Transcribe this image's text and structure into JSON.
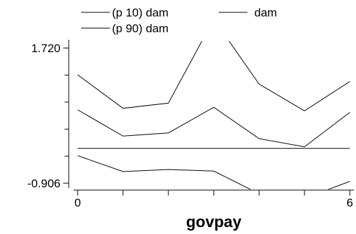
{
  "chart_data": {
    "type": "line",
    "xlabel": "govpay",
    "x": [
      0,
      1,
      2,
      3,
      4,
      5,
      6
    ],
    "xlim": [
      0,
      6
    ],
    "x_tick_labels": [
      {
        "value": 0,
        "label": "0"
      },
      {
        "value": 6,
        "label": "6"
      }
    ],
    "ylim": [
      -0.906,
      1.72
    ],
    "y_tick_labels": [
      {
        "value": 1.72,
        "label": "1.720"
      },
      {
        "value": -0.906,
        "label": "-0.906"
      }
    ],
    "series": [
      {
        "name": "(p 10) dam",
        "values": [
          -0.37,
          -0.68,
          -0.64,
          -0.67,
          -1.11,
          -1.2,
          -0.87
        ]
      },
      {
        "name": "dam",
        "values": [
          0.52,
          0.01,
          0.07,
          0.57,
          -0.04,
          -0.2,
          0.47
        ]
      },
      {
        "name": "(p 90) dam",
        "values": [
          1.2,
          0.55,
          0.65,
          2.28,
          1.02,
          0.5,
          1.07
        ]
      },
      {
        "name": "",
        "values": [
          -0.23,
          -0.23,
          -0.23,
          -0.23,
          -0.23,
          -0.23,
          -0.23
        ]
      }
    ],
    "legend_position": "top-left"
  },
  "colors": {
    "line": "#000000",
    "background": "#ffffff"
  }
}
